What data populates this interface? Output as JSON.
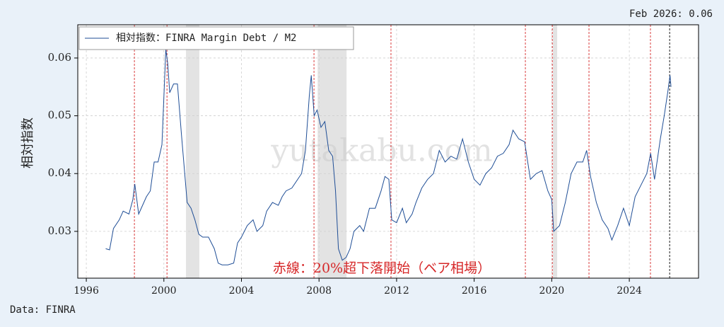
{
  "chart_data": {
    "type": "line",
    "ylabel": "相対指数",
    "corner_note": "Feb 2026: 0.06",
    "red_line_note": "赤線：20%超下落開始（ベア相場）",
    "source": "Data: FINRA",
    "watermark": "yutakabu.com",
    "legend": "upper left",
    "grid": true,
    "xlim": [
      1995.56,
      2027.57
    ],
    "ylim": [
      0.0219,
      0.06575
    ],
    "xticks": [
      1996,
      2000,
      2004,
      2008,
      2012,
      2016,
      2020,
      2024
    ],
    "yticks": [
      0.03,
      0.04,
      0.05,
      0.06
    ],
    "x": [
      1997.0,
      1997.2,
      1997.4,
      1997.7,
      1997.9,
      1998.2,
      1998.4,
      1998.5,
      1998.7,
      1998.9,
      1999.1,
      1999.3,
      1999.5,
      1999.7,
      1999.9,
      2000.1,
      2000.2,
      2000.3,
      2000.5,
      2000.7,
      2000.9,
      2001.0,
      2001.2,
      2001.4,
      2001.6,
      2001.8,
      2002.0,
      2002.3,
      2002.6,
      2002.8,
      2003.0,
      2003.3,
      2003.6,
      2003.8,
      2004.0,
      2004.3,
      2004.6,
      2004.8,
      2005.1,
      2005.3,
      2005.6,
      2005.9,
      2006.1,
      2006.3,
      2006.6,
      2006.9,
      2007.1,
      2007.3,
      2007.5,
      2007.6,
      2007.75,
      2007.9,
      2008.1,
      2008.3,
      2008.5,
      2008.7,
      2008.85,
      2009.0,
      2009.2,
      2009.4,
      2009.6,
      2009.8,
      2010.1,
      2010.3,
      2010.6,
      2010.9,
      2011.2,
      2011.4,
      2011.6,
      2011.75,
      2012.0,
      2012.3,
      2012.5,
      2012.8,
      2013.0,
      2013.3,
      2013.6,
      2013.9,
      2014.2,
      2014.5,
      2014.8,
      2015.1,
      2015.4,
      2015.7,
      2016.0,
      2016.3,
      2016.6,
      2016.9,
      2017.2,
      2017.5,
      2017.8,
      2018.0,
      2018.3,
      2018.6,
      2018.9,
      2019.2,
      2019.5,
      2019.8,
      2020.0,
      2020.1,
      2020.4,
      2020.7,
      2021.0,
      2021.3,
      2021.6,
      2021.8,
      2022.0,
      2022.3,
      2022.6,
      2022.9,
      2023.1,
      2023.4,
      2023.7,
      2024.0,
      2024.3,
      2024.6,
      2024.9,
      2025.1,
      2025.3,
      2025.6,
      2025.8,
      2026.0,
      2026.1,
      2026.15
    ],
    "series": [
      {
        "name": "相対指数：FINRA Margin Debt / M2",
        "color": "#1f4e96",
        "values": [
          0.027,
          0.0268,
          0.0305,
          0.032,
          0.0335,
          0.033,
          0.0355,
          0.0382,
          0.033,
          0.0345,
          0.036,
          0.037,
          0.042,
          0.042,
          0.045,
          0.0615,
          0.059,
          0.054,
          0.0555,
          0.0555,
          0.047,
          0.043,
          0.035,
          0.034,
          0.032,
          0.0295,
          0.029,
          0.029,
          0.027,
          0.0245,
          0.0242,
          0.0242,
          0.0245,
          0.028,
          0.029,
          0.031,
          0.032,
          0.03,
          0.031,
          0.0335,
          0.035,
          0.0345,
          0.036,
          0.037,
          0.0375,
          0.039,
          0.04,
          0.044,
          0.0535,
          0.057,
          0.05,
          0.051,
          0.048,
          0.049,
          0.044,
          0.043,
          0.037,
          0.027,
          0.025,
          0.0255,
          0.027,
          0.03,
          0.031,
          0.03,
          0.034,
          0.034,
          0.037,
          0.0395,
          0.039,
          0.032,
          0.0315,
          0.034,
          0.0315,
          0.033,
          0.035,
          0.0375,
          0.039,
          0.04,
          0.044,
          0.042,
          0.043,
          0.0425,
          0.046,
          0.042,
          0.039,
          0.038,
          0.04,
          0.041,
          0.043,
          0.0435,
          0.045,
          0.0475,
          0.046,
          0.0455,
          0.039,
          0.04,
          0.0405,
          0.037,
          0.0355,
          0.03,
          0.031,
          0.035,
          0.04,
          0.042,
          0.042,
          0.044,
          0.0395,
          0.035,
          0.032,
          0.0305,
          0.0285,
          0.031,
          0.034,
          0.031,
          0.036,
          0.038,
          0.04,
          0.0435,
          0.039,
          0.046,
          0.05,
          0.0545,
          0.057,
          0.055
        ]
      }
    ],
    "bear_starts": [
      1998.48,
      2000.16,
      2007.74,
      2011.71,
      2018.64,
      2020.03,
      2021.92,
      2025.09
    ],
    "bear_color": "#d62728",
    "latest": 2026.08,
    "recessions": [
      [
        2001.14,
        2001.83
      ],
      [
        2007.93,
        2009.42
      ],
      [
        2020.06,
        2020.28
      ]
    ]
  }
}
